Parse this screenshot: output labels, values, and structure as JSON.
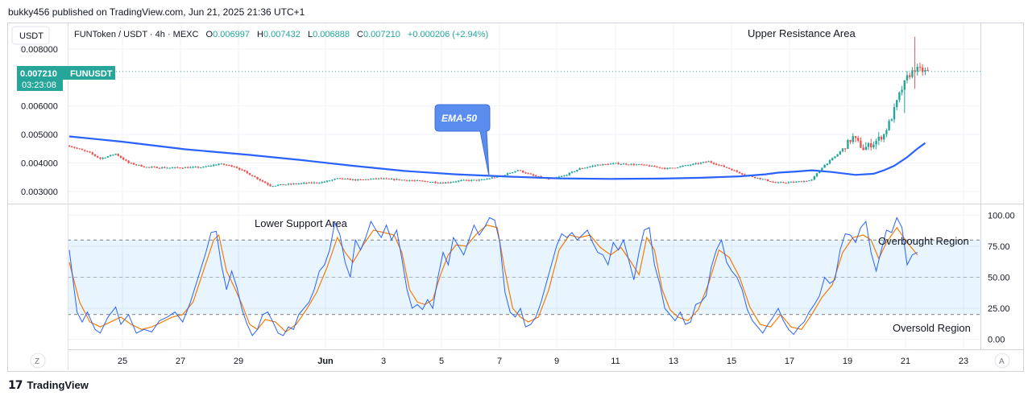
{
  "header": {
    "published": "bukky456 published on TradingView.com, Jun 21, 2025 21:36 UTC+1"
  },
  "footer": {
    "brand": "TradingView"
  },
  "toolbar": {
    "currency_button": "USDT",
    "timezone_left": "Z",
    "auto_scale": "A"
  },
  "legend": {
    "symbol": "FUNToken / USDT · 4h · MEXC",
    "o_label": "O",
    "o": "0.006997",
    "h_label": "H",
    "h": "0.007432",
    "l_label": "L",
    "l": "0.006888",
    "c_label": "C",
    "c": "0.007210",
    "change": "+0.000206 (+2.94%)"
  },
  "price_tag": {
    "price": "0.007210",
    "countdown": "03:23:08",
    "ticker": "FUNUSDT"
  },
  "colors": {
    "up": "#26a69a",
    "down": "#ef5350",
    "ema": "#2962ff",
    "k_line": "#2962ff",
    "d_line": "#f57c00",
    "band": "#2196f3",
    "tag": "#26a69a",
    "callout": "#5b8def",
    "text": "#131722",
    "axis_text": "#131722"
  },
  "chart_data": [
    {
      "type": "candlestick",
      "title": "",
      "ylim": [
        0.0026,
        0.0089
      ],
      "y_ticks": [
        "0.003000",
        "0.004000",
        "0.005000",
        "0.006000",
        "0.007000",
        "0.008000"
      ],
      "x_ticks": [
        "25",
        "27",
        "29",
        "Jun",
        "3",
        "5",
        "7",
        "9",
        "11",
        "13",
        "15",
        "17",
        "19",
        "21",
        "23"
      ],
      "grid": true,
      "annotations": {
        "upper": "Upper Resistance Area",
        "ema_callout": "EMA-50"
      },
      "ema_label": "EMA-50",
      "ema": [
        [
          0,
          0.00493
        ],
        [
          20,
          0.00475
        ],
        [
          45,
          0.00448
        ],
        [
          70,
          0.00428
        ],
        [
          90,
          0.0041
        ],
        [
          110,
          0.0039
        ],
        [
          130,
          0.00372
        ],
        [
          150,
          0.0036
        ],
        [
          170,
          0.00352
        ],
        [
          190,
          0.00346
        ],
        [
          210,
          0.00344
        ],
        [
          230,
          0.00345
        ],
        [
          245,
          0.00348
        ],
        [
          260,
          0.00353
        ],
        [
          270,
          0.0036
        ],
        [
          275,
          0.00366
        ],
        [
          282,
          0.0037
        ],
        [
          288,
          0.00374
        ],
        [
          296,
          0.00368
        ],
        [
          305,
          0.00358
        ],
        [
          312,
          0.00362
        ],
        [
          316,
          0.00374
        ],
        [
          320,
          0.0039
        ],
        [
          325,
          0.0042
        ],
        [
          329,
          0.0045
        ],
        [
          332,
          0.0047
        ]
      ],
      "anchors": [
        [
          0,
          0.0046
        ],
        [
          8,
          0.00435
        ],
        [
          12,
          0.00415
        ],
        [
          18,
          0.00432
        ],
        [
          23,
          0.004
        ],
        [
          30,
          0.00385
        ],
        [
          40,
          0.00383
        ],
        [
          52,
          0.00385
        ],
        [
          58,
          0.00397
        ],
        [
          64,
          0.00388
        ],
        [
          72,
          0.0035
        ],
        [
          78,
          0.0032
        ],
        [
          88,
          0.00327
        ],
        [
          98,
          0.00332
        ],
        [
          104,
          0.00345
        ],
        [
          112,
          0.0034
        ],
        [
          120,
          0.00345
        ],
        [
          130,
          0.0034
        ],
        [
          138,
          0.00335
        ],
        [
          145,
          0.0033
        ],
        [
          152,
          0.00338
        ],
        [
          160,
          0.0034
        ],
        [
          168,
          0.00356
        ],
        [
          174,
          0.00375
        ],
        [
          180,
          0.00355
        ],
        [
          186,
          0.00342
        ],
        [
          192,
          0.00355
        ],
        [
          198,
          0.0038
        ],
        [
          205,
          0.00393
        ],
        [
          212,
          0.00398
        ],
        [
          222,
          0.00393
        ],
        [
          232,
          0.0038
        ],
        [
          240,
          0.00392
        ],
        [
          248,
          0.00405
        ],
        [
          256,
          0.0038
        ],
        [
          262,
          0.00358
        ],
        [
          268,
          0.00345
        ],
        [
          274,
          0.0033
        ],
        [
          282,
          0.00333
        ],
        [
          288,
          0.0034
        ],
        [
          292,
          0.00385
        ],
        [
          298,
          0.0043
        ],
        [
          304,
          0.0049
        ],
        [
          308,
          0.0045
        ],
        [
          312,
          0.0047
        ],
        [
          316,
          0.005
        ],
        [
          319,
          0.0056
        ],
        [
          322,
          0.0064
        ],
        [
          325,
          0.007
        ],
        [
          328,
          0.0073
        ],
        [
          332,
          0.00721
        ]
      ]
    },
    {
      "type": "line",
      "title": "",
      "ylim": [
        -8,
        108
      ],
      "y_ticks": [
        "0.00",
        "25.00",
        "50.00",
        "75.00",
        "100.00"
      ],
      "overbought": 80,
      "midline": 50,
      "oversold": 20,
      "annotations": {
        "lower": "Lower Support Area",
        "overbought": "Overbought Region",
        "oversold": "Oversold Region"
      },
      "k_anchors": [
        [
          0,
          72
        ],
        [
          3,
          22
        ],
        [
          5,
          14
        ],
        [
          7,
          22
        ],
        [
          10,
          8
        ],
        [
          12,
          5
        ],
        [
          15,
          18
        ],
        [
          18,
          26
        ],
        [
          20,
          12
        ],
        [
          23,
          20
        ],
        [
          26,
          5
        ],
        [
          29,
          8
        ],
        [
          32,
          6
        ],
        [
          35,
          15
        ],
        [
          38,
          18
        ],
        [
          41,
          22
        ],
        [
          44,
          14
        ],
        [
          47,
          30
        ],
        [
          50,
          50
        ],
        [
          53,
          70
        ],
        [
          55,
          86
        ],
        [
          57,
          87
        ],
        [
          59,
          60
        ],
        [
          61,
          40
        ],
        [
          63,
          55
        ],
        [
          65,
          42
        ],
        [
          67,
          24
        ],
        [
          69,
          12
        ],
        [
          71,
          3
        ],
        [
          73,
          8
        ],
        [
          75,
          20
        ],
        [
          77,
          22
        ],
        [
          79,
          14
        ],
        [
          81,
          5
        ],
        [
          83,
          3
        ],
        [
          85,
          10
        ],
        [
          87,
          8
        ],
        [
          89,
          20
        ],
        [
          91,
          25
        ],
        [
          93,
          30
        ],
        [
          95,
          40
        ],
        [
          97,
          55
        ],
        [
          99,
          60
        ],
        [
          101,
          72
        ],
        [
          103,
          94
        ],
        [
          105,
          84
        ],
        [
          107,
          62
        ],
        [
          109,
          50
        ],
        [
          111,
          80
        ],
        [
          113,
          72
        ],
        [
          115,
          82
        ],
        [
          117,
          95
        ],
        [
          119,
          88
        ],
        [
          121,
          82
        ],
        [
          123,
          92
        ],
        [
          125,
          80
        ],
        [
          127,
          88
        ],
        [
          129,
          65
        ],
        [
          131,
          40
        ],
        [
          133,
          25
        ],
        [
          135,
          28
        ],
        [
          137,
          24
        ],
        [
          139,
          32
        ],
        [
          141,
          25
        ],
        [
          143,
          50
        ],
        [
          145,
          70
        ],
        [
          147,
          60
        ],
        [
          149,
          82
        ],
        [
          151,
          75
        ],
        [
          153,
          68
        ],
        [
          155,
          80
        ],
        [
          157,
          92
        ],
        [
          159,
          84
        ],
        [
          161,
          90
        ],
        [
          163,
          98
        ],
        [
          165,
          96
        ],
        [
          167,
          78
        ],
        [
          169,
          38
        ],
        [
          171,
          22
        ],
        [
          173,
          18
        ],
        [
          175,
          25
        ],
        [
          177,
          10
        ],
        [
          179,
          12
        ],
        [
          181,
          18
        ],
        [
          183,
          30
        ],
        [
          185,
          45
        ],
        [
          187,
          60
        ],
        [
          189,
          75
        ],
        [
          191,
          85
        ],
        [
          193,
          82
        ],
        [
          195,
          86
        ],
        [
          197,
          80
        ],
        [
          199,
          84
        ],
        [
          201,
          88
        ],
        [
          203,
          78
        ],
        [
          205,
          70
        ],
        [
          207,
          68
        ],
        [
          209,
          60
        ],
        [
          211,
          78
        ],
        [
          213,
          72
        ],
        [
          215,
          80
        ],
        [
          217,
          64
        ],
        [
          219,
          48
        ],
        [
          221,
          70
        ],
        [
          223,
          88
        ],
        [
          225,
          90
        ],
        [
          227,
          60
        ],
        [
          229,
          45
        ],
        [
          231,
          25
        ],
        [
          233,
          20
        ],
        [
          235,
          15
        ],
        [
          237,
          22
        ],
        [
          239,
          12
        ],
        [
          241,
          14
        ],
        [
          243,
          28
        ],
        [
          245,
          30
        ],
        [
          247,
          35
        ],
        [
          249,
          58
        ],
        [
          251,
          72
        ],
        [
          253,
          80
        ],
        [
          255,
          62
        ],
        [
          257,
          55
        ],
        [
          259,
          50
        ],
        [
          261,
          40
        ],
        [
          263,
          24
        ],
        [
          265,
          15
        ],
        [
          267,
          10
        ],
        [
          269,
          5
        ],
        [
          271,
          12
        ],
        [
          273,
          18
        ],
        [
          275,
          25
        ],
        [
          277,
          15
        ],
        [
          279,
          8
        ],
        [
          281,
          4
        ],
        [
          283,
          10
        ],
        [
          285,
          14
        ],
        [
          287,
          22
        ],
        [
          289,
          28
        ],
        [
          291,
          35
        ],
        [
          293,
          50
        ],
        [
          295,
          45
        ],
        [
          297,
          48
        ],
        [
          299,
          72
        ],
        [
          301,
          85
        ],
        [
          303,
          84
        ],
        [
          305,
          78
        ],
        [
          307,
          90
        ],
        [
          309,
          95
        ],
        [
          311,
          70
        ],
        [
          313,
          55
        ],
        [
          315,
          72
        ],
        [
          317,
          88
        ],
        [
          319,
          86
        ],
        [
          321,
          98
        ],
        [
          323,
          90
        ],
        [
          325,
          60
        ],
        [
          327,
          68
        ],
        [
          329,
          70
        ]
      ],
      "d_anchors": [
        [
          0,
          62
        ],
        [
          4,
          30
        ],
        [
          8,
          14
        ],
        [
          12,
          10
        ],
        [
          16,
          14
        ],
        [
          20,
          18
        ],
        [
          24,
          12
        ],
        [
          28,
          8
        ],
        [
          32,
          10
        ],
        [
          36,
          14
        ],
        [
          40,
          18
        ],
        [
          44,
          20
        ],
        [
          48,
          30
        ],
        [
          52,
          55
        ],
        [
          56,
          80
        ],
        [
          58,
          84
        ],
        [
          61,
          55
        ],
        [
          64,
          42
        ],
        [
          67,
          28
        ],
        [
          70,
          12
        ],
        [
          73,
          8
        ],
        [
          76,
          16
        ],
        [
          80,
          14
        ],
        [
          84,
          6
        ],
        [
          88,
          12
        ],
        [
          92,
          24
        ],
        [
          96,
          38
        ],
        [
          100,
          58
        ],
        [
          104,
          82
        ],
        [
          107,
          70
        ],
        [
          110,
          62
        ],
        [
          114,
          76
        ],
        [
          118,
          88
        ],
        [
          122,
          86
        ],
        [
          126,
          84
        ],
        [
          129,
          70
        ],
        [
          132,
          40
        ],
        [
          135,
          30
        ],
        [
          138,
          28
        ],
        [
          141,
          32
        ],
        [
          144,
          52
        ],
        [
          147,
          68
        ],
        [
          150,
          76
        ],
        [
          154,
          75
        ],
        [
          158,
          85
        ],
        [
          162,
          92
        ],
        [
          166,
          90
        ],
        [
          169,
          55
        ],
        [
          172,
          25
        ],
        [
          175,
          18
        ],
        [
          178,
          14
        ],
        [
          182,
          18
        ],
        [
          186,
          40
        ],
        [
          190,
          72
        ],
        [
          194,
          84
        ],
        [
          198,
          82
        ],
        [
          202,
          84
        ],
        [
          206,
          74
        ],
        [
          210,
          68
        ],
        [
          214,
          74
        ],
        [
          218,
          62
        ],
        [
          221,
          52
        ],
        [
          224,
          82
        ],
        [
          227,
          72
        ],
        [
          230,
          40
        ],
        [
          233,
          24
        ],
        [
          236,
          18
        ],
        [
          240,
          15
        ],
        [
          244,
          24
        ],
        [
          248,
          45
        ],
        [
          252,
          72
        ],
        [
          256,
          66
        ],
        [
          260,
          50
        ],
        [
          264,
          26
        ],
        [
          268,
          12
        ],
        [
          272,
          10
        ],
        [
          276,
          20
        ],
        [
          280,
          10
        ],
        [
          284,
          8
        ],
        [
          288,
          20
        ],
        [
          292,
          34
        ],
        [
          296,
          44
        ],
        [
          300,
          70
        ],
        [
          304,
          82
        ],
        [
          308,
          84
        ],
        [
          311,
          80
        ],
        [
          314,
          65
        ],
        [
          317,
          78
        ],
        [
          321,
          90
        ],
        [
          325,
          78
        ],
        [
          329,
          68
        ]
      ]
    }
  ]
}
